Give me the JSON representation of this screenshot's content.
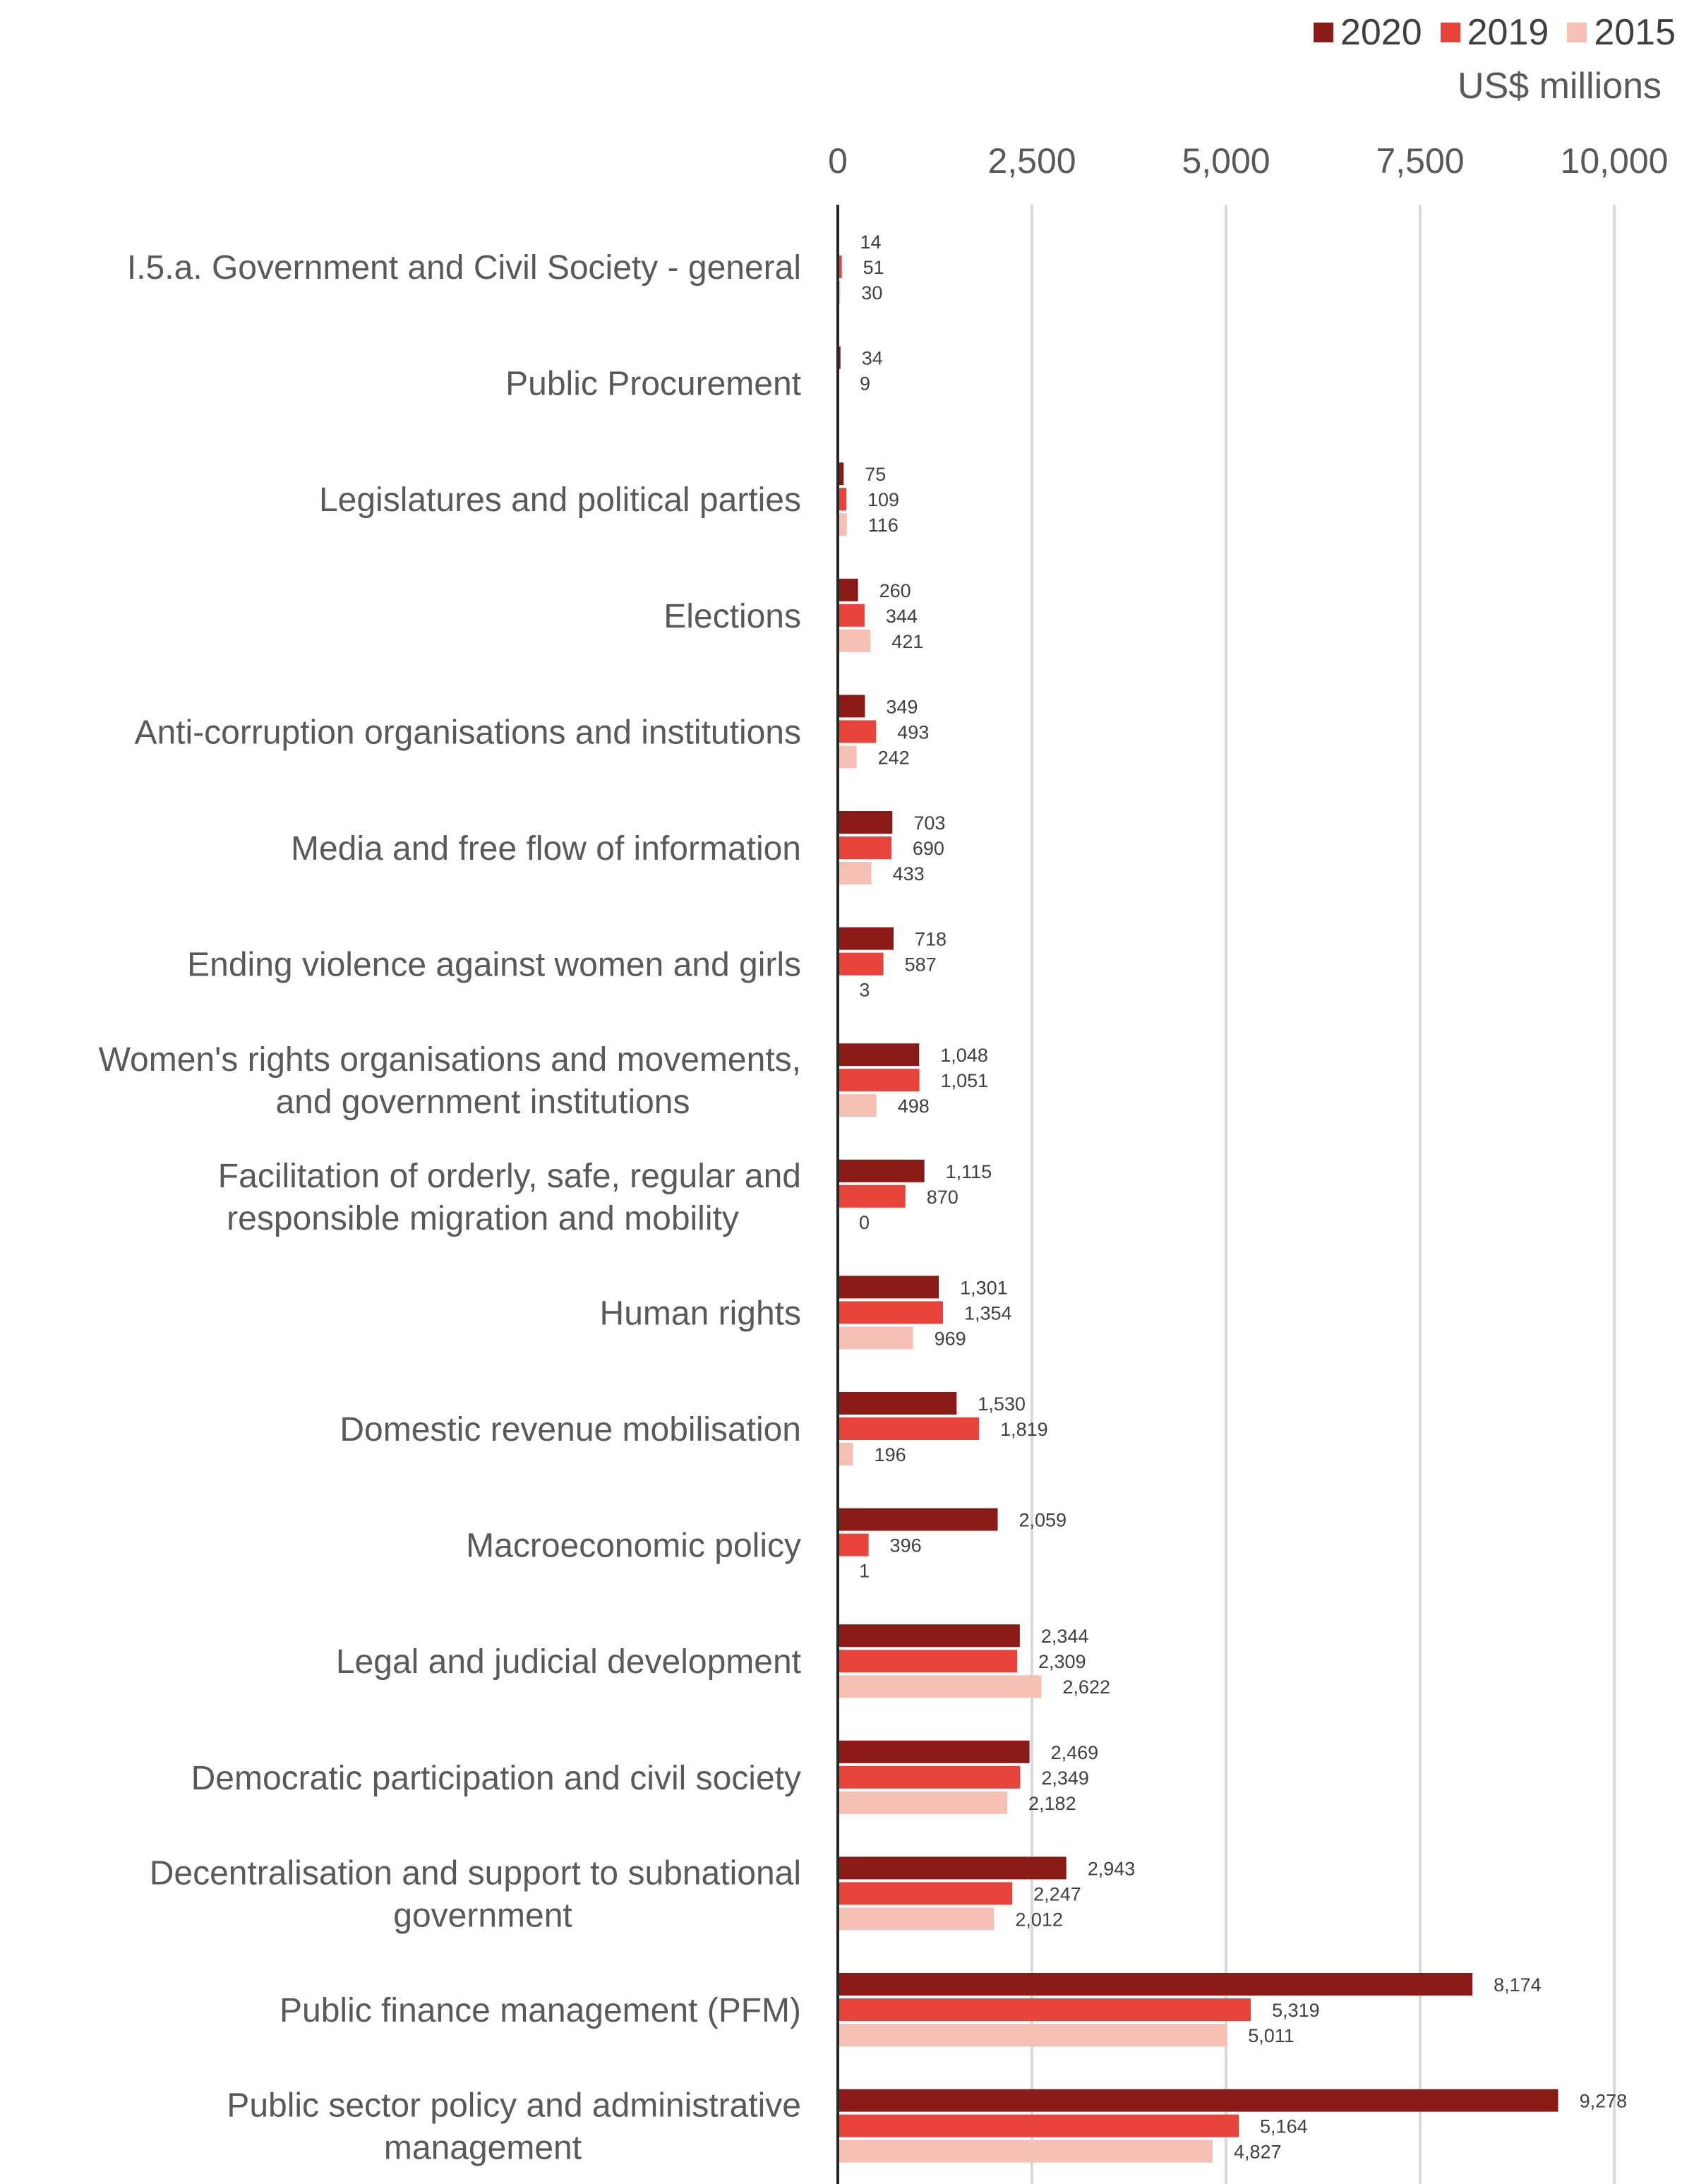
{
  "legend": {
    "items": [
      {
        "name": "2020",
        "color": "#8B1A17"
      },
      {
        "name": "2019",
        "color": "#E8433B"
      },
      {
        "name": "2015",
        "color": "#F7C0B5"
      }
    ]
  },
  "unit": "US$ millions",
  "chart_data": {
    "type": "bar",
    "orientation": "horizontal",
    "title": "",
    "xlabel": "",
    "ylabel": "",
    "unit": "US$ millions",
    "xlim": [
      0,
      10000
    ],
    "xticks": [
      0,
      2500,
      5000,
      7500,
      10000
    ],
    "xtick_labels": [
      "0",
      "2,500",
      "5,000",
      "7,500",
      "10,000"
    ],
    "grid": true,
    "legend_position": "top-right",
    "categories": [
      "I.5.a. Government and Civil Society - general",
      "Public Procurement",
      "Legislatures and political parties",
      "Elections",
      "Anti-corruption organisations and institutions",
      "Media and free flow of information",
      "Ending violence against women and girls",
      "Women's rights organisations and movements, and government institutions",
      "Facilitation of orderly, safe, regular and responsible migration and mobility",
      "Human rights",
      "Domestic revenue mobilisation",
      "Macroeconomic policy",
      "Legal and judicial development",
      "Democratic participation and civil society",
      "Decentralisation and support to subnational government",
      "Public finance management (PFM)",
      "Public sector policy and administrative management"
    ],
    "category_lines": [
      [
        "I.5.a. Government and Civil Society - general"
      ],
      [
        "Public Procurement"
      ],
      [
        "Legislatures and political parties"
      ],
      [
        "Elections"
      ],
      [
        "Anti-corruption organisations and institutions"
      ],
      [
        "Media and free flow of information"
      ],
      [
        "Ending violence against women and girls"
      ],
      [
        "Women's rights organisations and movements,",
        "and government institutions"
      ],
      [
        "Facilitation of orderly, safe, regular and",
        "responsible migration and mobility"
      ],
      [
        "Human rights"
      ],
      [
        "Domestic revenue mobilisation"
      ],
      [
        "Macroeconomic policy"
      ],
      [
        "Legal and judicial development"
      ],
      [
        "Democratic participation and civil society"
      ],
      [
        "Decentralisation and support to subnational",
        "government"
      ],
      [
        "Public finance management (PFM)"
      ],
      [
        "Public sector policy and administrative",
        "management"
      ]
    ],
    "series": [
      {
        "name": "2020",
        "color": "#8B1A17",
        "values": [
          14,
          34,
          75,
          260,
          349,
          703,
          718,
          1048,
          1115,
          1301,
          1530,
          2059,
          2344,
          2469,
          2943,
          8174,
          9278
        ],
        "labels": [
          "14",
          "34",
          "75",
          "260",
          "349",
          "703",
          "718",
          "1,048",
          "1,115",
          "1,301",
          "1,530",
          "2,059",
          "2,344",
          "2,469",
          "2,943",
          "8,174",
          "9,278"
        ]
      },
      {
        "name": "2019",
        "color": "#E8433B",
        "values": [
          51,
          9,
          109,
          344,
          493,
          690,
          587,
          1051,
          870,
          1354,
          1819,
          396,
          2309,
          2349,
          2247,
          5319,
          5164
        ],
        "labels": [
          "51",
          "9",
          "109",
          "344",
          "493",
          "690",
          "587",
          "1,051",
          "870",
          "1,354",
          "1,819",
          "396",
          "2,309",
          "2,349",
          "2,247",
          "5,319",
          "5,164"
        ]
      },
      {
        "name": "2015",
        "color": "#F7C0B5",
        "values": [
          30,
          null,
          116,
          421,
          242,
          433,
          3,
          498,
          0,
          969,
          196,
          1,
          2622,
          2182,
          2012,
          5011,
          4827
        ],
        "labels": [
          "30",
          null,
          "116",
          "421",
          "242",
          "433",
          "3",
          "498",
          "0",
          "969",
          "196",
          "1",
          "2,622",
          "2,182",
          "2,012",
          "5,011",
          "4,827"
        ]
      }
    ]
  }
}
